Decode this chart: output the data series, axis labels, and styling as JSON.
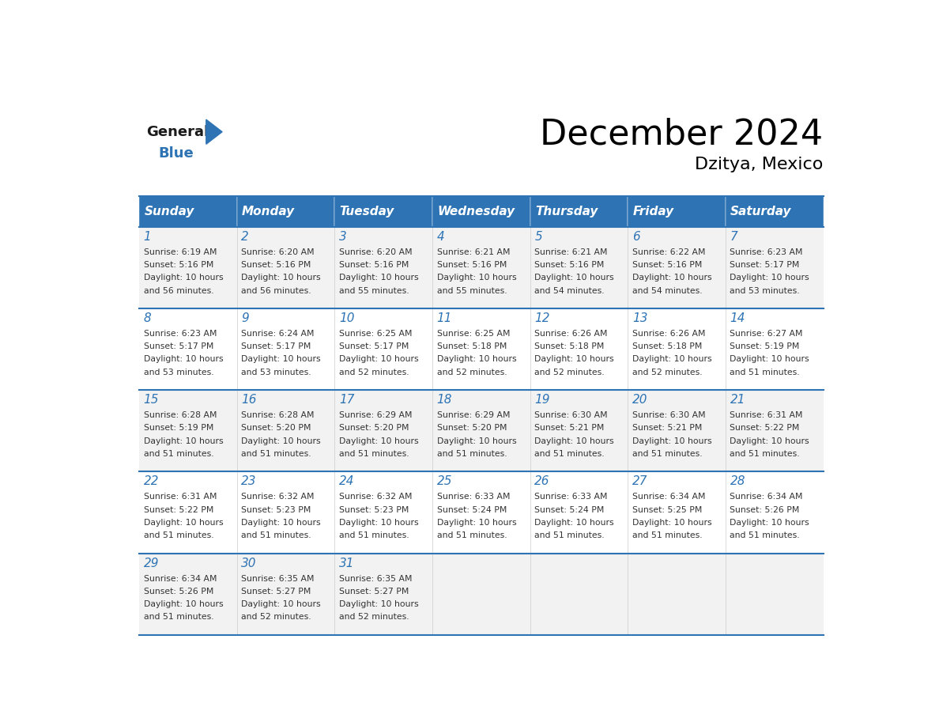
{
  "title": "December 2024",
  "subtitle": "Dzitya, Mexico",
  "header_color": "#2E74B5",
  "header_text_color": "#FFFFFF",
  "cell_bg_color": "#FFFFFF",
  "alt_cell_bg_color": "#F2F2F2",
  "day_number_color": "#2E74B5",
  "text_color": "#333333",
  "border_color": "#2E74B5",
  "days_of_week": [
    "Sunday",
    "Monday",
    "Tuesday",
    "Wednesday",
    "Thursday",
    "Friday",
    "Saturday"
  ],
  "weeks": [
    [
      {
        "day": 1,
        "sunrise": "6:19 AM",
        "sunset": "5:16 PM",
        "daylight_hours": 10,
        "daylight_minutes": 56
      },
      {
        "day": 2,
        "sunrise": "6:20 AM",
        "sunset": "5:16 PM",
        "daylight_hours": 10,
        "daylight_minutes": 56
      },
      {
        "day": 3,
        "sunrise": "6:20 AM",
        "sunset": "5:16 PM",
        "daylight_hours": 10,
        "daylight_minutes": 55
      },
      {
        "day": 4,
        "sunrise": "6:21 AM",
        "sunset": "5:16 PM",
        "daylight_hours": 10,
        "daylight_minutes": 55
      },
      {
        "day": 5,
        "sunrise": "6:21 AM",
        "sunset": "5:16 PM",
        "daylight_hours": 10,
        "daylight_minutes": 54
      },
      {
        "day": 6,
        "sunrise": "6:22 AM",
        "sunset": "5:16 PM",
        "daylight_hours": 10,
        "daylight_minutes": 54
      },
      {
        "day": 7,
        "sunrise": "6:23 AM",
        "sunset": "5:17 PM",
        "daylight_hours": 10,
        "daylight_minutes": 53
      }
    ],
    [
      {
        "day": 8,
        "sunrise": "6:23 AM",
        "sunset": "5:17 PM",
        "daylight_hours": 10,
        "daylight_minutes": 53
      },
      {
        "day": 9,
        "sunrise": "6:24 AM",
        "sunset": "5:17 PM",
        "daylight_hours": 10,
        "daylight_minutes": 53
      },
      {
        "day": 10,
        "sunrise": "6:25 AM",
        "sunset": "5:17 PM",
        "daylight_hours": 10,
        "daylight_minutes": 52
      },
      {
        "day": 11,
        "sunrise": "6:25 AM",
        "sunset": "5:18 PM",
        "daylight_hours": 10,
        "daylight_minutes": 52
      },
      {
        "day": 12,
        "sunrise": "6:26 AM",
        "sunset": "5:18 PM",
        "daylight_hours": 10,
        "daylight_minutes": 52
      },
      {
        "day": 13,
        "sunrise": "6:26 AM",
        "sunset": "5:18 PM",
        "daylight_hours": 10,
        "daylight_minutes": 52
      },
      {
        "day": 14,
        "sunrise": "6:27 AM",
        "sunset": "5:19 PM",
        "daylight_hours": 10,
        "daylight_minutes": 51
      }
    ],
    [
      {
        "day": 15,
        "sunrise": "6:28 AM",
        "sunset": "5:19 PM",
        "daylight_hours": 10,
        "daylight_minutes": 51
      },
      {
        "day": 16,
        "sunrise": "6:28 AM",
        "sunset": "5:20 PM",
        "daylight_hours": 10,
        "daylight_minutes": 51
      },
      {
        "day": 17,
        "sunrise": "6:29 AM",
        "sunset": "5:20 PM",
        "daylight_hours": 10,
        "daylight_minutes": 51
      },
      {
        "day": 18,
        "sunrise": "6:29 AM",
        "sunset": "5:20 PM",
        "daylight_hours": 10,
        "daylight_minutes": 51
      },
      {
        "day": 19,
        "sunrise": "6:30 AM",
        "sunset": "5:21 PM",
        "daylight_hours": 10,
        "daylight_minutes": 51
      },
      {
        "day": 20,
        "sunrise": "6:30 AM",
        "sunset": "5:21 PM",
        "daylight_hours": 10,
        "daylight_minutes": 51
      },
      {
        "day": 21,
        "sunrise": "6:31 AM",
        "sunset": "5:22 PM",
        "daylight_hours": 10,
        "daylight_minutes": 51
      }
    ],
    [
      {
        "day": 22,
        "sunrise": "6:31 AM",
        "sunset": "5:22 PM",
        "daylight_hours": 10,
        "daylight_minutes": 51
      },
      {
        "day": 23,
        "sunrise": "6:32 AM",
        "sunset": "5:23 PM",
        "daylight_hours": 10,
        "daylight_minutes": 51
      },
      {
        "day": 24,
        "sunrise": "6:32 AM",
        "sunset": "5:23 PM",
        "daylight_hours": 10,
        "daylight_minutes": 51
      },
      {
        "day": 25,
        "sunrise": "6:33 AM",
        "sunset": "5:24 PM",
        "daylight_hours": 10,
        "daylight_minutes": 51
      },
      {
        "day": 26,
        "sunrise": "6:33 AM",
        "sunset": "5:24 PM",
        "daylight_hours": 10,
        "daylight_minutes": 51
      },
      {
        "day": 27,
        "sunrise": "6:34 AM",
        "sunset": "5:25 PM",
        "daylight_hours": 10,
        "daylight_minutes": 51
      },
      {
        "day": 28,
        "sunrise": "6:34 AM",
        "sunset": "5:26 PM",
        "daylight_hours": 10,
        "daylight_minutes": 51
      }
    ],
    [
      {
        "day": 29,
        "sunrise": "6:34 AM",
        "sunset": "5:26 PM",
        "daylight_hours": 10,
        "daylight_minutes": 51
      },
      {
        "day": 30,
        "sunrise": "6:35 AM",
        "sunset": "5:27 PM",
        "daylight_hours": 10,
        "daylight_minutes": 52
      },
      {
        "day": 31,
        "sunrise": "6:35 AM",
        "sunset": "5:27 PM",
        "daylight_hours": 10,
        "daylight_minutes": 52
      },
      null,
      null,
      null,
      null
    ]
  ]
}
